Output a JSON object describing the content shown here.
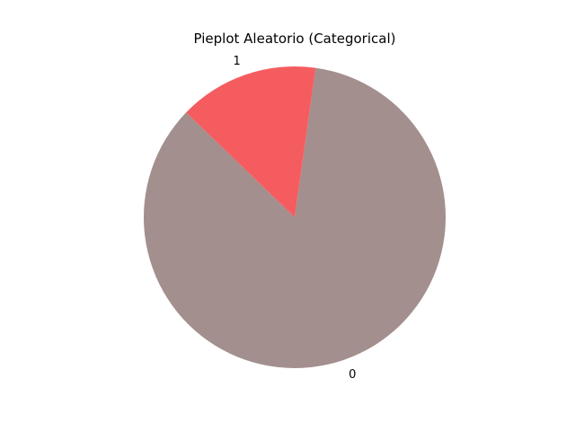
{
  "chart_data": {
    "type": "pie",
    "title": "Pieplot Aleatorio (Categorical)",
    "categories": [
      "0",
      "1"
    ],
    "values": [
      85,
      15
    ],
    "colors": [
      "#a38f8d",
      "#f55c60"
    ],
    "start_angle_deg": 136,
    "direction": "counterclockwise",
    "legend": "none"
  }
}
